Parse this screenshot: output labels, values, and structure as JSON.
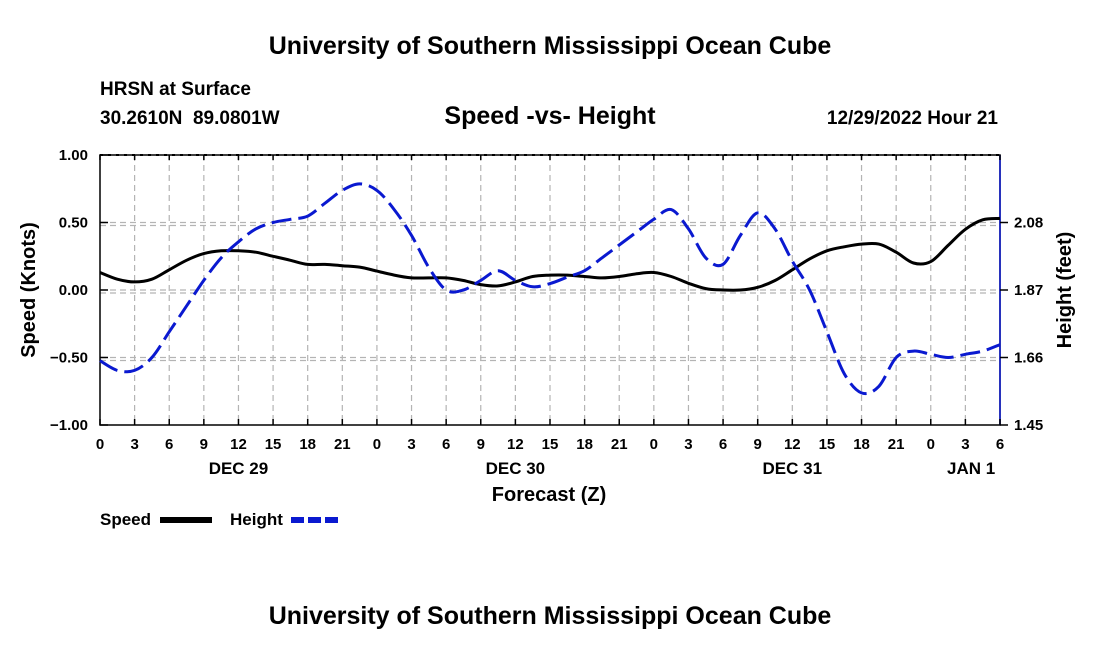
{
  "page": {
    "header_title": "University of Southern Mississippi Ocean Cube",
    "footer_title": "University of Southern Mississippi Ocean Cube",
    "station": "HRSN at Surface",
    "coords": "30.2610N  89.0801W",
    "subtitle": "Speed -vs- Height",
    "date_hour": "12/29/2022 Hour 21"
  },
  "chart_data": {
    "type": "line",
    "title": "Speed -vs- Height",
    "xlabel": "Forecast (Z)",
    "ylabel_left": "Speed (Knots)",
    "ylabel_right": "Height (feet)",
    "x_unit": "hours since 12/29/2022 00Z",
    "x_range": [
      0,
      78
    ],
    "x_tick_values": [
      0,
      3,
      6,
      9,
      12,
      15,
      18,
      21,
      24,
      27,
      30,
      33,
      36,
      39,
      42,
      45,
      48,
      51,
      54,
      57,
      60,
      63,
      66,
      69,
      72,
      75,
      78
    ],
    "x_tick_labels": [
      "0",
      "3",
      "6",
      "9",
      "12",
      "15",
      "18",
      "21",
      "0",
      "3",
      "6",
      "9",
      "12",
      "15",
      "18",
      "21",
      "0",
      "3",
      "6",
      "9",
      "12",
      "15",
      "18",
      "21",
      "0",
      "3",
      "6"
    ],
    "day_labels": [
      {
        "label": "DEC 29",
        "x": 12
      },
      {
        "label": "DEC 30",
        "x": 36
      },
      {
        "label": "DEC 31",
        "x": 60
      },
      {
        "label": "JAN 1",
        "x": 75.5
      }
    ],
    "ylim_left": [
      -1.0,
      1.0
    ],
    "y_left_ticks": [
      -1.0,
      -0.5,
      0.0,
      0.5,
      1.0
    ],
    "y_left_tick_labels": [
      "−1.00",
      "−0.50",
      "0.00",
      "0.50",
      "1.00"
    ],
    "ylim_right": [
      1.45,
      2.29
    ],
    "y_right_ticks": [
      1.45,
      1.66,
      1.87,
      2.08
    ],
    "y_right_tick_labels": [
      "1.45",
      "1.66",
      "1.87",
      "2.08"
    ],
    "grid": true,
    "legend_position": "bottom-left",
    "series": [
      {
        "name": "Speed",
        "axis": "left",
        "color": "#000000",
        "dash": "solid",
        "x": [
          0,
          1.5,
          3,
          4.5,
          6,
          7.5,
          9,
          10.5,
          12,
          13.5,
          15,
          16.5,
          18,
          19.5,
          21,
          22.5,
          24,
          25.5,
          27,
          28.5,
          30,
          31.5,
          33,
          34.5,
          36,
          37.5,
          39,
          40.5,
          42,
          43.5,
          45,
          46.5,
          48,
          49.5,
          51,
          52.5,
          54,
          55.5,
          57,
          58.5,
          60,
          61.5,
          63,
          64.5,
          66,
          67.5,
          69,
          70.5,
          72,
          73.5,
          75,
          76.5,
          78
        ],
        "values": [
          0.13,
          0.08,
          0.06,
          0.08,
          0.15,
          0.22,
          0.27,
          0.29,
          0.29,
          0.28,
          0.25,
          0.22,
          0.19,
          0.19,
          0.18,
          0.17,
          0.14,
          0.11,
          0.09,
          0.09,
          0.09,
          0.07,
          0.04,
          0.03,
          0.06,
          0.1,
          0.11,
          0.11,
          0.1,
          0.09,
          0.1,
          0.12,
          0.13,
          0.1,
          0.05,
          0.01,
          0.0,
          0.0,
          0.02,
          0.07,
          0.15,
          0.23,
          0.29,
          0.32,
          0.34,
          0.34,
          0.28,
          0.2,
          0.21,
          0.33,
          0.45,
          0.52,
          0.53
        ]
      },
      {
        "name": "Height",
        "axis": "right",
        "color": "#0a19d0",
        "dash": "dashed",
        "x": [
          0,
          1.5,
          3,
          4.5,
          6,
          7.5,
          9,
          10.5,
          12,
          13.5,
          15,
          16.5,
          18,
          19.5,
          21,
          22.5,
          24,
          25.5,
          27,
          28.5,
          30,
          31.5,
          33,
          34.5,
          36,
          37.5,
          39,
          40.5,
          42,
          43.5,
          45,
          46.5,
          48,
          49.5,
          51,
          52.5,
          54,
          55.5,
          57,
          58.5,
          60,
          61.5,
          63,
          64.5,
          66,
          67.5,
          69,
          70.5,
          72,
          73.5,
          75,
          76.5,
          78
        ],
        "values": [
          1.65,
          1.62,
          1.62,
          1.66,
          1.74,
          1.82,
          1.9,
          1.97,
          2.02,
          2.06,
          2.08,
          2.09,
          2.1,
          2.14,
          2.18,
          2.2,
          2.18,
          2.12,
          2.04,
          1.94,
          1.87,
          1.87,
          1.9,
          1.93,
          1.9,
          1.88,
          1.89,
          1.91,
          1.93,
          1.97,
          2.01,
          2.05,
          2.09,
          2.12,
          2.06,
          1.97,
          1.95,
          2.04,
          2.11,
          2.06,
          1.96,
          1.87,
          1.74,
          1.61,
          1.55,
          1.57,
          1.66,
          1.68,
          1.67,
          1.66,
          1.67,
          1.68,
          1.7
        ]
      }
    ]
  }
}
